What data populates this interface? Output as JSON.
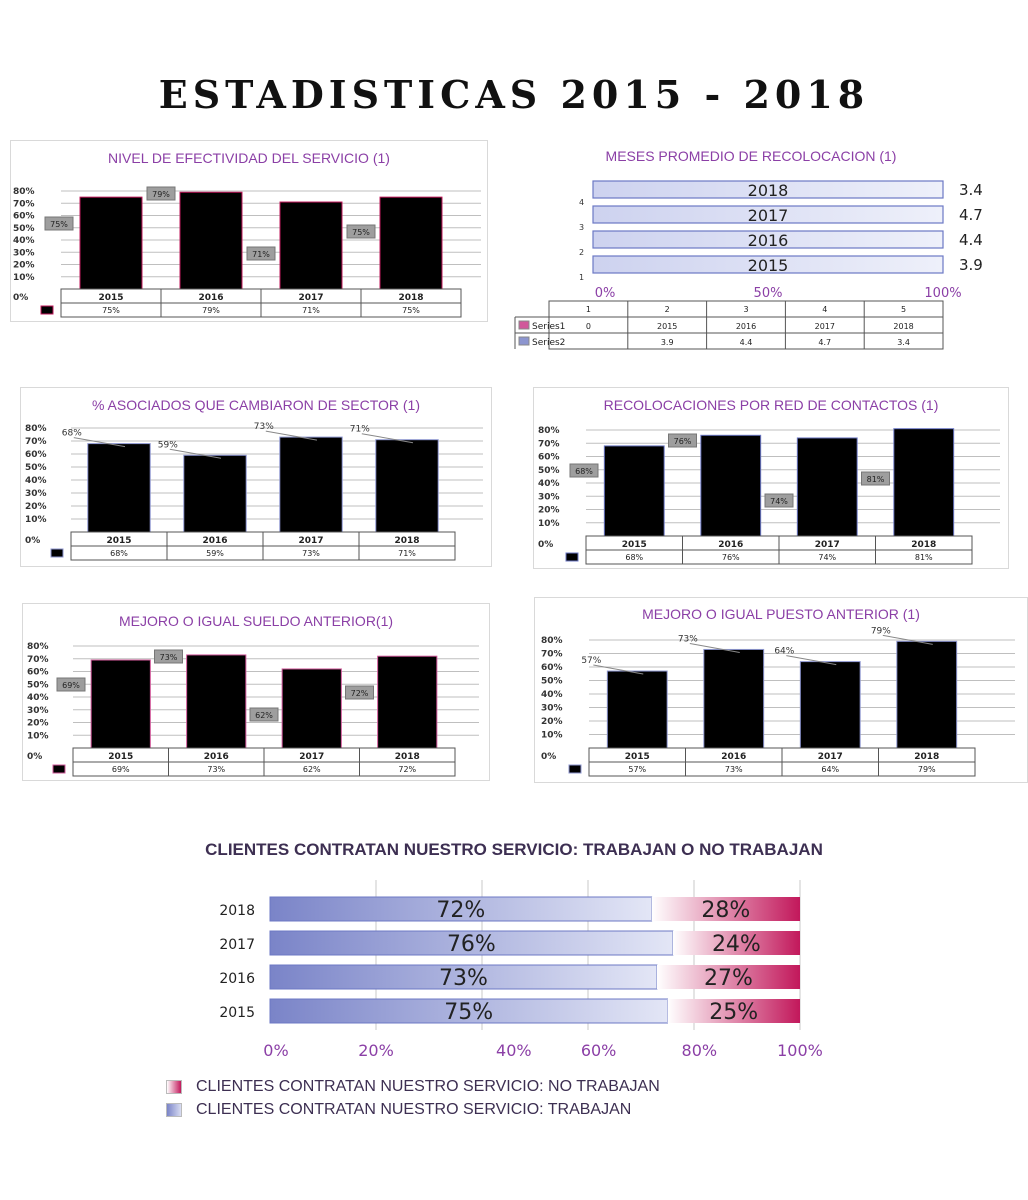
{
  "page_title": "ESTADISTICAS 2015 - 2018",
  "colors": {
    "pink_top": "#ffffff",
    "pink_bottom": "#c2185b",
    "blue_top": "#e8ebf8",
    "blue_bottom": "#5460b6",
    "title_purple": "#8b3fa6"
  },
  "chart_data": [
    {
      "id": "efectividad",
      "type": "bar",
      "title": "NIVEL DE EFECTIVIDAD DEL SERVICIO (1)",
      "categories": [
        "2015",
        "2016",
        "2017",
        "2018"
      ],
      "values": [
        75,
        79,
        71,
        75
      ],
      "value_labels": [
        "75%",
        "79%",
        "71%",
        "75%"
      ],
      "yticks": [
        "80%",
        "70%",
        "60%",
        "50%",
        "40%",
        "30%",
        "20%",
        "10%",
        "0%"
      ],
      "ylim": [
        0,
        80
      ],
      "color": "pink",
      "label_style": "callout"
    },
    {
      "id": "meses",
      "type": "bar",
      "orientation": "horizontal",
      "title": "MESES PROMEDIO DE RECOLOCACION (1)",
      "categories": [
        "2018",
        "2017",
        "2016",
        "2015"
      ],
      "row_labels": [
        "4",
        "3",
        "2",
        "1"
      ],
      "values": [
        3.4,
        4.7,
        4.4,
        3.9
      ],
      "value_labels": [
        "3.4",
        "4.7",
        "4.4",
        "3.9"
      ],
      "xticks": [
        "0%",
        "50%",
        "100%"
      ],
      "table": {
        "headers": [
          "1",
          "2",
          "3",
          "4",
          "5"
        ],
        "rows": [
          {
            "name": "Series1",
            "cells": [
              "0",
              "2015",
              "2016",
              "2017",
              "2018"
            ]
          },
          {
            "name": "Series2",
            "cells": [
              "",
              "3.9",
              "4.4",
              "4.7",
              "3.4"
            ]
          }
        ]
      }
    },
    {
      "id": "sector",
      "type": "bar",
      "title": "% ASOCIADOS QUE CAMBIARON DE SECTOR (1)",
      "categories": [
        "2015",
        "2016",
        "2017",
        "2018"
      ],
      "values": [
        68,
        59,
        73,
        71
      ],
      "value_labels": [
        "68%",
        "59%",
        "73%",
        "71%"
      ],
      "yticks": [
        "80%",
        "70%",
        "60%",
        "50%",
        "40%",
        "30%",
        "20%",
        "10%",
        "0%"
      ],
      "ylim": [
        0,
        80
      ],
      "color": "blue-light",
      "label_style": "leader"
    },
    {
      "id": "contactos",
      "type": "bar",
      "title": "RECOLOCACIONES POR RED DE CONTACTOS (1)",
      "categories": [
        "2015",
        "2016",
        "2017",
        "2018"
      ],
      "values": [
        68,
        76,
        74,
        81
      ],
      "value_labels": [
        "68%",
        "76%",
        "74%",
        "81%"
      ],
      "yticks": [
        "80%",
        "70%",
        "60%",
        "50%",
        "40%",
        "30%",
        "20%",
        "10%",
        "0%"
      ],
      "ylim": [
        0,
        80
      ],
      "color": "blue",
      "label_style": "callout"
    },
    {
      "id": "sueldo",
      "type": "bar",
      "title": "MEJORO O IGUAL SUELDO ANTERIOR(1)",
      "categories": [
        "2015",
        "2016",
        "2017",
        "2018"
      ],
      "values": [
        69,
        73,
        62,
        72
      ],
      "value_labels": [
        "69%",
        "73%",
        "62%",
        "72%"
      ],
      "callout_labels": [
        "69%",
        "73%",
        "62%",
        "72%"
      ],
      "yticks": [
        "80%",
        "70%",
        "60%",
        "50%",
        "40%",
        "30%",
        "20%",
        "10%",
        "0%"
      ],
      "ylim": [
        0,
        80
      ],
      "color": "pink-light",
      "label_style": "callout"
    },
    {
      "id": "puesto",
      "type": "bar",
      "title": "MEJORO O IGUAL PUESTO ANTERIOR (1)",
      "categories": [
        "2015",
        "2016",
        "2017",
        "2018"
      ],
      "values": [
        57,
        73,
        64,
        79
      ],
      "value_labels": [
        "57%",
        "73%",
        "64%",
        "79%"
      ],
      "yticks": [
        "80%",
        "70%",
        "60%",
        "50%",
        "40%",
        "30%",
        "20%",
        "10%",
        "0%"
      ],
      "ylim": [
        0,
        80
      ],
      "color": "blue-light",
      "label_style": "leader"
    },
    {
      "id": "clientes",
      "type": "bar",
      "orientation": "horizontal",
      "stacked": true,
      "title": "CLIENTES CONTRATAN NUESTRO SERVICIO: TRABAJAN O NO TRABAJAN",
      "categories": [
        "2018",
        "2017",
        "2016",
        "2015"
      ],
      "series": [
        {
          "name": "CLIENTES CONTRATAN NUESTRO SERVICIO: TRABAJAN",
          "values": [
            72,
            76,
            73,
            75
          ],
          "labels": [
            "72%",
            "76%",
            "73%",
            "75%"
          ]
        },
        {
          "name": "CLIENTES CONTRATAN NUESTRO SERVICIO: NO TRABAJAN",
          "values": [
            28,
            24,
            27,
            25
          ],
          "labels": [
            "28%",
            "24%",
            "27%",
            "25%"
          ]
        }
      ],
      "xticks": [
        "0%",
        "20%",
        "40%",
        "60%",
        "80%",
        "100%"
      ],
      "xlim": [
        0,
        100
      ]
    }
  ]
}
